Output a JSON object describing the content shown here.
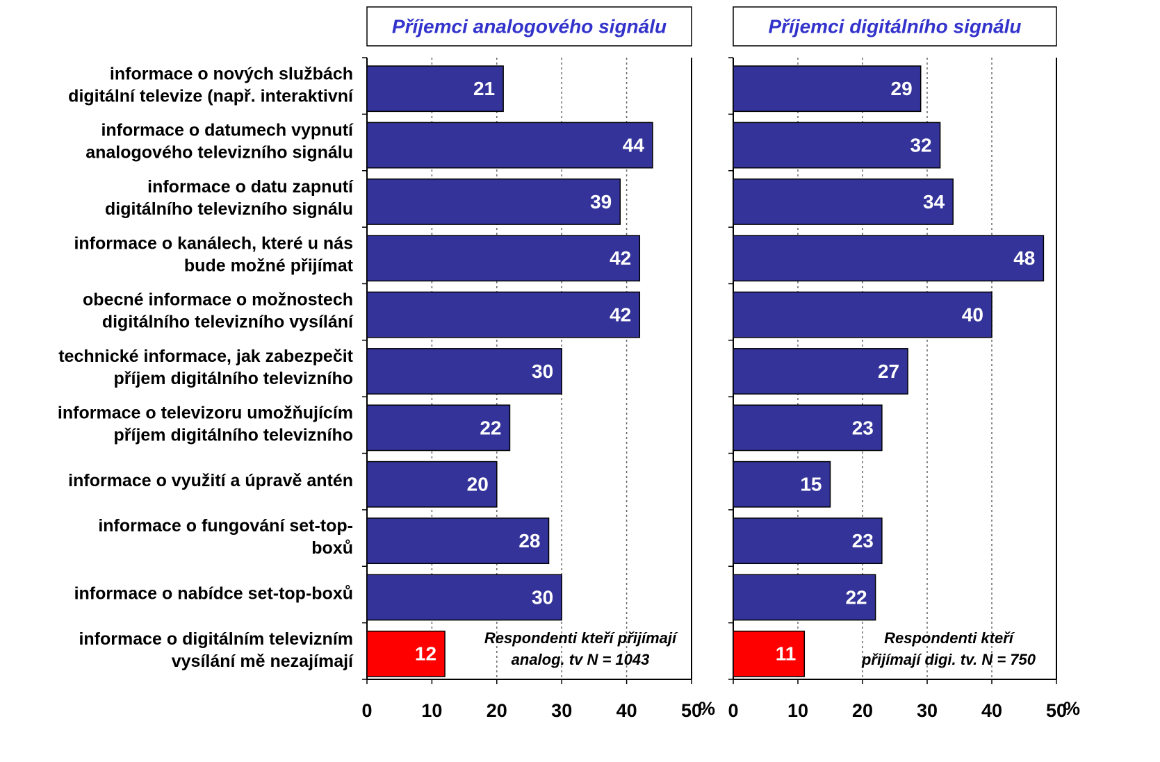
{
  "chart_data": [
    {
      "type": "bar",
      "orientation": "horizontal",
      "title": "Příjemci analogového signálu",
      "categories": [
        [
          "informace o nových službách",
          "digitální televize (např. interaktivní"
        ],
        [
          "informace o datumech vypnutí",
          "analogového televizního signálu"
        ],
        [
          "informace o datu zapnutí",
          "digitálního televizního signálu"
        ],
        [
          "informace o kanálech, které u nás",
          "bude možné přijímat"
        ],
        [
          "obecné informace o možnostech",
          "digitálního televizního vysílání"
        ],
        [
          "technické informace, jak zabezpečit",
          "příjem digitálního televizního"
        ],
        [
          "informace o televizoru umožňujícím",
          "příjem digitálního televizního"
        ],
        [
          "informace o využití a úpravě antén"
        ],
        [
          "informace o fungování set-top-",
          "boxů"
        ],
        [
          "informace o nabídce set-top-boxů"
        ],
        [
          "informace o digitálním televizním",
          "vysílání mě nezajímají"
        ]
      ],
      "values": [
        21,
        44,
        39,
        42,
        42,
        30,
        22,
        20,
        28,
        30,
        12
      ],
      "colors": [
        "#333399",
        "#333399",
        "#333399",
        "#333399",
        "#333399",
        "#333399",
        "#333399",
        "#333399",
        "#333399",
        "#333399",
        "#ff0000"
      ],
      "xlim": [
        0,
        50
      ],
      "xticks": [
        0,
        10,
        20,
        30,
        40,
        50
      ],
      "x_label": "%",
      "grid": true,
      "annotation": [
        "Respondenti kteří přijímají",
        "analog. tv N = 1043"
      ]
    },
    {
      "type": "bar",
      "orientation": "horizontal",
      "title": "Příjemci digitálního signálu",
      "values": [
        29,
        32,
        34,
        48,
        40,
        27,
        23,
        15,
        23,
        22,
        11
      ],
      "colors": [
        "#333399",
        "#333399",
        "#333399",
        "#333399",
        "#333399",
        "#333399",
        "#333399",
        "#333399",
        "#333399",
        "#333399",
        "#ff0000"
      ],
      "xlim": [
        0,
        50
      ],
      "xticks": [
        0,
        10,
        20,
        30,
        40,
        50
      ],
      "x_label": "%",
      "grid": true,
      "annotation": [
        "Respondenti kteří",
        "přijímají digi. tv. N = 750"
      ]
    }
  ]
}
